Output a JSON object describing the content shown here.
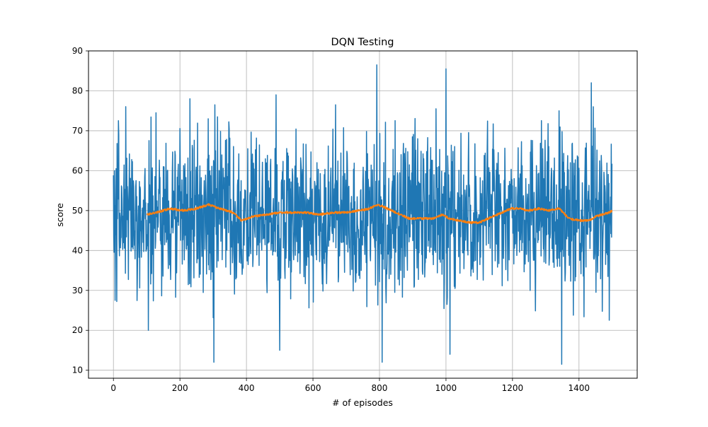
{
  "chart_data": {
    "type": "line",
    "title": "DQN Testing",
    "xlabel": "# of episodes",
    "ylabel": "score",
    "xlim": [
      -75,
      1575
    ],
    "ylim": [
      8,
      90
    ],
    "grid": true,
    "x_ticks": [
      0,
      200,
      400,
      600,
      800,
      1000,
      1200,
      1400
    ],
    "y_ticks": [
      10,
      20,
      30,
      40,
      50,
      60,
      70,
      80,
      90
    ],
    "series": [
      {
        "color": "#1f77b4",
        "x_start": 0,
        "x_step": 1,
        "points": 1500,
        "mean": 49,
        "range": [
          12,
          86.5
        ],
        "noted_extremes": [
          {
            "x": 3,
            "y": 60
          },
          {
            "x": 5,
            "y": 27.5
          },
          {
            "x": 15,
            "y": 72.5
          },
          {
            "x": 105,
            "y": 20
          },
          {
            "x": 128,
            "y": 74.5
          },
          {
            "x": 230,
            "y": 78
          },
          {
            "x": 285,
            "y": 73
          },
          {
            "x": 302,
            "y": 12
          },
          {
            "x": 348,
            "y": 70.5
          },
          {
            "x": 489,
            "y": 79
          },
          {
            "x": 500,
            "y": 15
          },
          {
            "x": 792,
            "y": 86.5
          },
          {
            "x": 808,
            "y": 12
          },
          {
            "x": 970,
            "y": 75.5
          },
          {
            "x": 1000,
            "y": 85.5
          },
          {
            "x": 1012,
            "y": 14
          },
          {
            "x": 1340,
            "y": 75
          },
          {
            "x": 1348,
            "y": 11.5
          },
          {
            "x": 1437,
            "y": 82
          },
          {
            "x": 1443,
            "y": 76
          }
        ]
      },
      {
        "color": "#ff7f0e",
        "x_start": 100,
        "x_step": 1,
        "points": 1400,
        "x": [
          100,
          130,
          170,
          210,
          250,
          285,
          320,
          360,
          385,
          420,
          460,
          500,
          540,
          580,
          620,
          660,
          700,
          740,
          770,
          795,
          810,
          850,
          890,
          920,
          960,
          990,
          1010,
          1040,
          1070,
          1100,
          1140,
          1170,
          1195,
          1220,
          1250,
          1280,
          1310,
          1340,
          1370,
          1400,
          1430,
          1450,
          1470,
          1490,
          1500
        ],
        "y": [
          49,
          49.5,
          50.5,
          50,
          50.5,
          51.5,
          50.5,
          49.5,
          47.5,
          48.5,
          49,
          49.5,
          49.5,
          49.5,
          49,
          49.5,
          49.5,
          50,
          50.5,
          51.5,
          51,
          49.5,
          48,
          48,
          48,
          49,
          48,
          47.5,
          47,
          47,
          48.5,
          49.5,
          50.5,
          50.5,
          50,
          50.5,
          50,
          50.5,
          48,
          47.5,
          47.5,
          48.5,
          49,
          49.5,
          50
        ]
      }
    ]
  }
}
